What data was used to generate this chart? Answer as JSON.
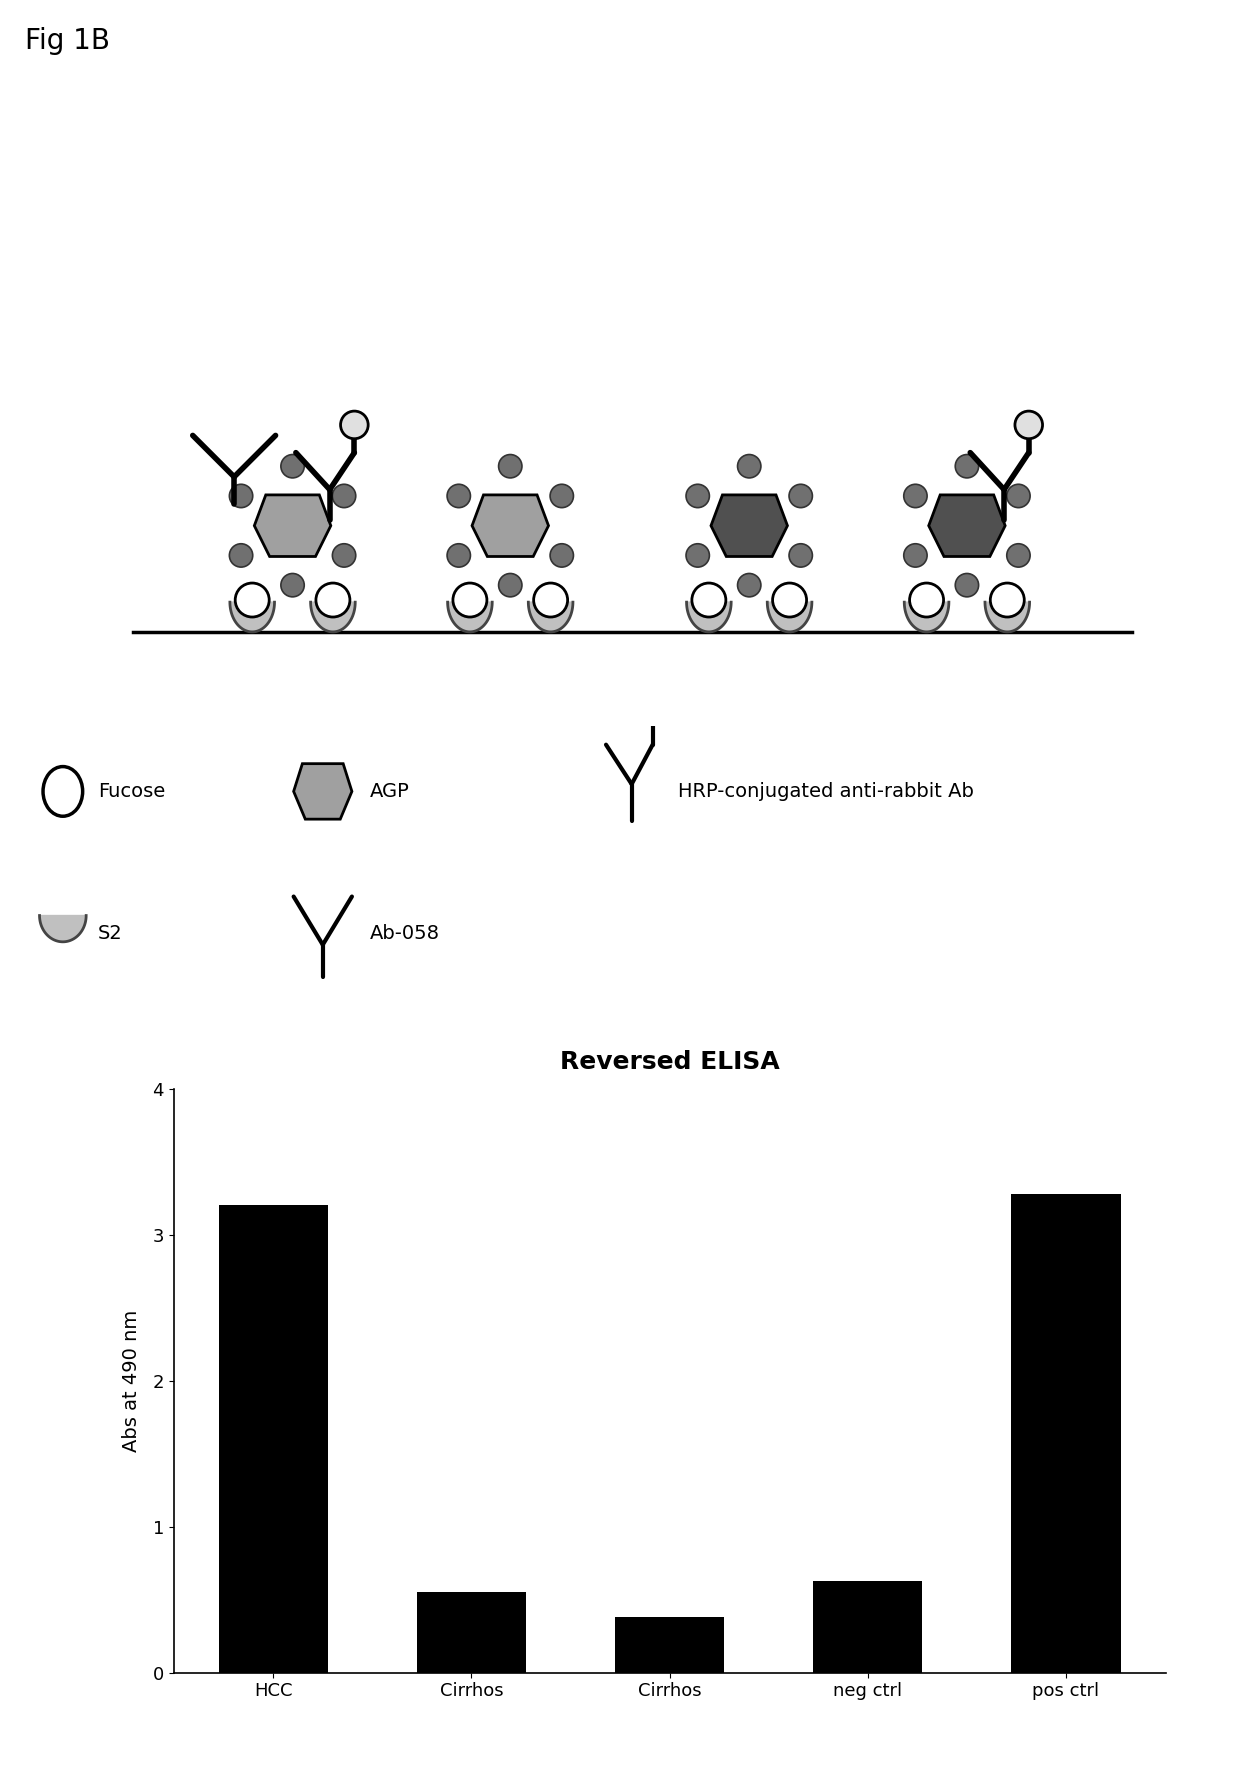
{
  "fig_label": "Fig 1B",
  "fig_label_fontsize": 20,
  "bar_categories": [
    "HCC",
    "Cirrhos",
    "Cirrhos",
    "neg ctrl",
    "pos ctrl"
  ],
  "bar_values": [
    3.2,
    0.55,
    0.38,
    0.63,
    3.28
  ],
  "bar_color": "#000000",
  "bar_title": "Reversed ELISA",
  "bar_title_fontsize": 18,
  "bar_title_fontweight": "bold",
  "bar_ylabel": "Abs at 490 nm",
  "bar_ylabel_fontsize": 14,
  "bar_ylim": [
    0,
    4
  ],
  "bar_yticks": [
    0,
    1,
    2,
    3,
    4
  ],
  "background_color": "#ffffff",
  "legend_fontsize": 14,
  "agp_light_color": "#a0a0a0",
  "agp_dark_color": "#505050",
  "small_circle_color": "#707070",
  "u_shape_color": "#c0c0c0",
  "white_circle_color": "#ffffff"
}
